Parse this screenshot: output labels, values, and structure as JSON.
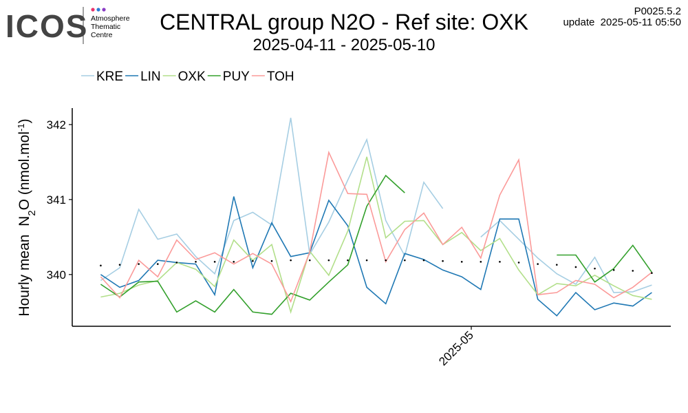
{
  "header": {
    "logo": "ICOS",
    "logo_lines": [
      "Atmosphere",
      "Thematic",
      "Centre"
    ],
    "version": "P0025.5.2",
    "update": "update  2025-05-11 05:50"
  },
  "chart_data": {
    "type": "line",
    "title": "CENTRAL group N2O - Ref site: OXK",
    "subtitle": "2025-04-11 - 2025-05-10",
    "y_label": [
      "Hourly mean  N",
      "2",
      "O (nmol.mol",
      "-1",
      ")"
    ],
    "categories": [
      null,
      null,
      null,
      null,
      null,
      null,
      null,
      null,
      null,
      null,
      null,
      null,
      null,
      null,
      null,
      null,
      null,
      null,
      null,
      null,
      null,
      null,
      null,
      null,
      null,
      null,
      null,
      null,
      null,
      null
    ],
    "xlim": [
      -1.5,
      30
    ],
    "xticks": [
      {
        "value": 19.5,
        "label": "2025-05"
      }
    ],
    "ylim": [
      339.31,
      342.22
    ],
    "yticks": [
      340,
      341,
      342
    ],
    "grid": false,
    "legend": "top",
    "series": [
      {
        "name": "KRE",
        "color": "#a6cee3",
        "values": [
          339.92,
          340.09,
          340.87,
          340.47,
          340.54,
          340.24,
          340.01,
          340.72,
          340.83,
          340.66,
          342.09,
          340.27,
          340.7,
          341.26,
          341.8,
          340.72,
          340.25,
          341.23,
          340.88,
          null,
          340.5,
          340.72,
          340.47,
          340.22,
          340.01,
          339.87,
          340.23,
          339.76,
          339.77,
          339.86
        ]
      },
      {
        "name": "LIN",
        "color": "#1f78b4",
        "values": [
          340.0,
          339.83,
          339.92,
          340.19,
          340.16,
          340.14,
          339.73,
          341.04,
          340.09,
          340.69,
          340.24,
          340.29,
          340.99,
          340.65,
          339.83,
          339.61,
          340.28,
          340.2,
          340.06,
          339.97,
          339.8,
          340.74,
          340.74,
          339.67,
          339.45,
          339.76,
          339.53,
          339.62,
          339.58,
          339.76
        ]
      },
      {
        "name": "OXK",
        "color": "#b2df8a",
        "values": [
          339.7,
          339.75,
          339.86,
          339.92,
          340.16,
          340.07,
          339.84,
          340.46,
          340.19,
          340.4,
          339.5,
          340.31,
          339.99,
          340.58,
          341.57,
          340.49,
          340.71,
          340.72,
          340.4,
          340.56,
          340.32,
          340.48,
          340.06,
          339.73,
          339.88,
          339.85,
          339.99,
          339.85,
          339.72,
          339.67
        ]
      },
      {
        "name": "PUY",
        "color": "#33a02c",
        "values": [
          339.87,
          339.7,
          339.9,
          339.91,
          339.5,
          339.65,
          339.5,
          339.8,
          339.5,
          339.47,
          339.75,
          339.66,
          339.9,
          340.13,
          340.91,
          341.32,
          341.09,
          null,
          null,
          null,
          null,
          null,
          null,
          null,
          340.26,
          340.26,
          339.9,
          340.08,
          340.39,
          340.03
        ]
      },
      {
        "name": "TOH",
        "color": "#fb9a99",
        "values": [
          339.97,
          339.69,
          340.19,
          339.97,
          340.46,
          340.2,
          340.29,
          340.14,
          340.28,
          340.14,
          339.64,
          340.3,
          341.63,
          341.08,
          341.07,
          340.17,
          340.6,
          340.82,
          340.4,
          340.63,
          340.22,
          341.06,
          341.53,
          339.73,
          339.76,
          339.92,
          339.87,
          339.69,
          339.83,
          340.03
        ]
      },
      {
        "color": "#000000",
        "style": "points",
        "values": [
          340.12,
          340.13,
          340.14,
          340.14,
          340.16,
          340.17,
          340.17,
          340.17,
          340.18,
          340.18,
          340.19,
          340.19,
          340.19,
          340.19,
          340.19,
          340.19,
          340.19,
          340.19,
          340.18,
          340.17,
          340.17,
          340.17,
          340.16,
          340.14,
          340.13,
          340.1,
          340.08,
          340.06,
          340.05,
          340.02
        ]
      }
    ]
  }
}
